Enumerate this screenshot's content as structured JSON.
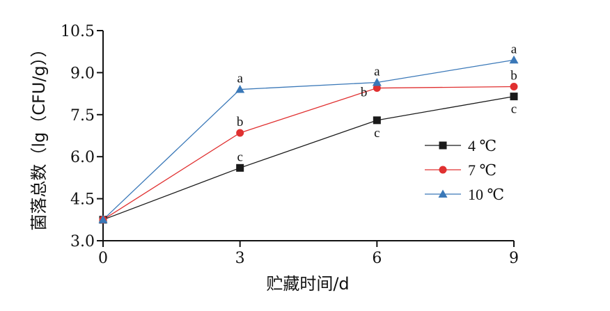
{
  "chart_data": {
    "type": "line",
    "xlabel": "贮藏时间/d",
    "ylabel": "菌落总数（lg（CFU/g））",
    "x": [
      0,
      3,
      6,
      9
    ],
    "xlim": [
      0,
      9
    ],
    "ylim": [
      3.0,
      10.5
    ],
    "xticks": [
      "0",
      "3",
      "6",
      "9"
    ],
    "yticks": [
      "3.0",
      "4.5",
      "6.0",
      "7.5",
      "9.0",
      "10.5"
    ],
    "grid": false,
    "legend_position": "right",
    "series": [
      {
        "name": "4 ℃",
        "color": "#1a1a1a",
        "marker": "square",
        "values": [
          3.75,
          5.6,
          7.3,
          8.15
        ],
        "sig": [
          "",
          "c",
          "c",
          "c"
        ],
        "sig_pos": [
          "",
          "above",
          "below",
          "below"
        ]
      },
      {
        "name": "7 ℃",
        "color": "#e03030",
        "marker": "circle",
        "values": [
          3.75,
          6.85,
          8.45,
          8.5
        ],
        "sig": [
          "",
          "b",
          "b",
          "b"
        ],
        "sig_pos": [
          "",
          "above",
          "left",
          "above"
        ]
      },
      {
        "name": "10 ℃",
        "color": "#3a78b8",
        "marker": "triangle",
        "values": [
          3.75,
          8.4,
          8.65,
          9.45
        ],
        "sig": [
          "",
          "a",
          "a",
          "a"
        ],
        "sig_pos": [
          "",
          "above",
          "above",
          "above"
        ]
      }
    ]
  }
}
